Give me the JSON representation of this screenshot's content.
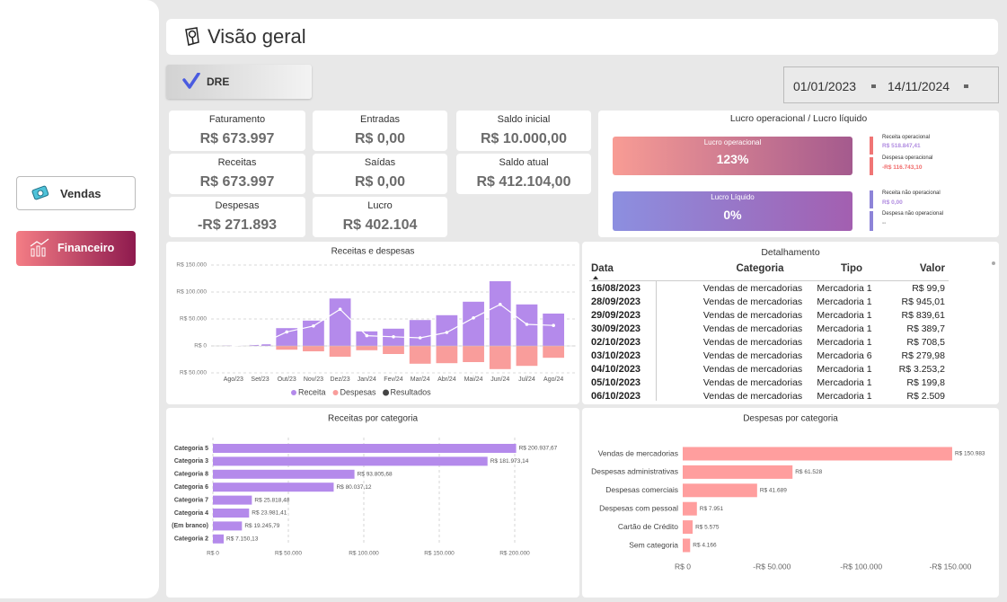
{
  "sidebar": {
    "buttons": [
      "Vendas",
      "Financeiro"
    ]
  },
  "header": {
    "title": "Visão geral"
  },
  "tab": "DRE",
  "date_range": {
    "start": "01/01/2023",
    "end": "14/11/2024"
  },
  "kpis": [
    {
      "label": "Faturamento",
      "value": "R$ 673.997"
    },
    {
      "label": "Receitas",
      "value": "R$ 673.997"
    },
    {
      "label": "Despesas",
      "value": "-R$ 271.893"
    },
    {
      "label": "Entradas",
      "value": "R$ 0,00"
    },
    {
      "label": "Saídas",
      "value": "R$ 0,00"
    },
    {
      "label": "Lucro",
      "value": "R$ 402.104"
    },
    {
      "label": "Saldo inicial",
      "value": "R$ 10.000,00"
    },
    {
      "label": "Saldo atual",
      "value": "R$ 412.104,00"
    }
  ],
  "lucro_panel": {
    "title": "Lucro operacional / Lucro líquido",
    "gauges": [
      {
        "label": "Lucro operacional",
        "value": "123%"
      },
      {
        "label": "Lucro Líquido",
        "value": "0%"
      }
    ],
    "details": [
      {
        "label": "Receita operacional",
        "value": "R$ 518.847,41"
      },
      {
        "label": "Despesa operacional",
        "value": "-R$ 116.743,10"
      },
      {
        "label": "Receita não operacional",
        "value": "R$ 0,00"
      },
      {
        "label": "Despesa não operacional",
        "value": "--"
      }
    ]
  },
  "table": {
    "title": "Detalhamento",
    "columns": [
      "Data",
      "Categoria",
      "Tipo",
      "Valor"
    ],
    "rows": [
      [
        "16/08/2023",
        "Vendas de mercadorias",
        "Mercadoria 1",
        "R$ 99,9"
      ],
      [
        "28/09/2023",
        "Vendas de mercadorias",
        "Mercadoria 1",
        "R$ 945,01"
      ],
      [
        "29/09/2023",
        "Vendas de mercadorias",
        "Mercadoria 1",
        "R$ 839,61"
      ],
      [
        "30/09/2023",
        "Vendas de mercadorias",
        "Mercadoria 1",
        "R$ 389,7"
      ],
      [
        "02/10/2023",
        "Vendas de mercadorias",
        "Mercadoria 1",
        "R$ 708,5"
      ],
      [
        "03/10/2023",
        "Vendas de mercadorias",
        "Mercadoria 6",
        "R$ 279,98"
      ],
      [
        "04/10/2023",
        "Vendas de mercadorias",
        "Mercadoria 1",
        "R$ 3.253,2"
      ],
      [
        "05/10/2023",
        "Vendas de mercadorias",
        "Mercadoria 1",
        "R$ 199,8"
      ],
      [
        "06/10/2023",
        "Vendas de mercadorias",
        "Mercadoria 1",
        "R$ 2.509"
      ]
    ]
  },
  "chart_data": [
    {
      "type": "bar",
      "title": "Receitas e despesas",
      "stacked": true,
      "categories": [
        "Ago/23",
        "Set/23",
        "Out/23",
        "Nov/23",
        "Dez/23",
        "Jan/24",
        "Fev/24",
        "Mar/24",
        "Abr/24",
        "Mai/24",
        "Jun/24",
        "Jul/24",
        "Ago/24"
      ],
      "series": [
        {
          "name": "Receita",
          "color": "#b48aeb",
          "values": [
            500,
            3000,
            33000,
            47000,
            88000,
            27000,
            32000,
            48000,
            57000,
            82000,
            120000,
            77000,
            60000
          ]
        },
        {
          "name": "Despesas",
          "color": "#f99d9b",
          "values": [
            0,
            0,
            -7000,
            -10000,
            -20000,
            -8000,
            -15000,
            -33000,
            -32000,
            -30000,
            -43000,
            -37000,
            -22000
          ]
        },
        {
          "name": "Resultados",
          "type": "line",
          "color": "#ffffff",
          "values": [
            500,
            3000,
            26000,
            37000,
            68000,
            19000,
            17000,
            15000,
            25000,
            52000,
            77000,
            40000,
            38000
          ]
        }
      ],
      "ylim": [
        -50000,
        150000
      ],
      "yticks": [
        {
          "value": -50000,
          "label": "R$ 50.000"
        },
        {
          "value": 0,
          "label": "R$ 0"
        },
        {
          "value": 50000,
          "label": "R$ 50.000"
        },
        {
          "value": 100000,
          "label": "R$ 100.000"
        },
        {
          "value": 150000,
          "label": "R$ 150.000"
        }
      ],
      "grid": true,
      "legend": "bottom"
    },
    {
      "type": "barh",
      "title": "Receitas por categoria",
      "categories": [
        "Categoria 5",
        "Categoria 3",
        "Categoria 8",
        "Categoria 6",
        "Categoria 7",
        "Categoria 4",
        "(Em branco)",
        "Categoria 2"
      ],
      "values": [
        200937.67,
        181973.14,
        93805.68,
        80037.12,
        25818.48,
        23981.41,
        19245.79,
        7150.13
      ],
      "value_labels": [
        "R$ 200.937,67",
        "R$ 181.973,14",
        "R$ 93.805,68",
        "R$ 80.037,12",
        "R$ 25.818,48",
        "R$ 23.981,41",
        "R$ 19.245,79",
        "R$ 7.150,13"
      ],
      "color": "#b48aeb",
      "xlim": [
        0,
        200000
      ],
      "xticks": [
        {
          "value": 0,
          "label": "R$ 0"
        },
        {
          "value": 50000,
          "label": "R$ 50.000"
        },
        {
          "value": 100000,
          "label": "R$ 100.000"
        },
        {
          "value": 150000,
          "label": "R$ 150.000"
        },
        {
          "value": 200000,
          "label": "R$ 200.000"
        }
      ],
      "grid": true
    },
    {
      "type": "barh",
      "title": "Despesas por categoria",
      "categories": [
        "Vendas de mercadorias",
        "Despesas administrativas",
        "Despesas comerciais",
        "Despesas com pessoal",
        "Cartão de Crédito",
        "Sem categoria"
      ],
      "values": [
        -150983,
        -61528,
        -41689,
        -7951,
        -5575,
        -4166
      ],
      "value_labels": [
        "R$ 150.983",
        "R$ 61.528",
        "R$ 41.689",
        "R$ 7.951",
        "R$ 5.575",
        "R$ 4.166"
      ],
      "color": "#ff9e9e",
      "xlim": [
        0,
        -150000
      ],
      "xticks": [
        {
          "value": 0,
          "label": "R$ 0"
        },
        {
          "value": -50000,
          "label": "-R$ 50.000"
        },
        {
          "value": -100000,
          "label": "-R$ 100.000"
        },
        {
          "value": -150000,
          "label": "-R$ 150.000"
        }
      ],
      "grid": false
    }
  ]
}
